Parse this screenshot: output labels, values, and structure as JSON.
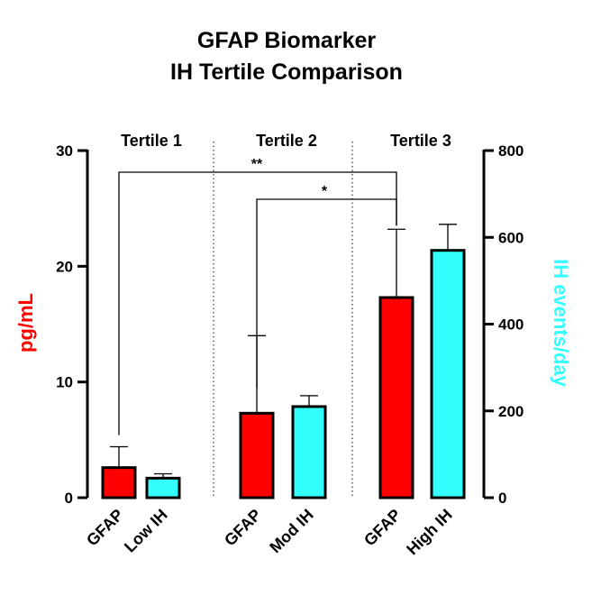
{
  "chart_data": {
    "type": "bar",
    "title": [
      "GFAP Biomarker",
      "IH Tertile Comparison"
    ],
    "groups": [
      "Tertile 1",
      "Tertile 2",
      "Tertile 3"
    ],
    "categories": [
      "GFAP",
      "Low IH",
      "GFAP",
      "Mod IH",
      "GFAP",
      "High IH"
    ],
    "ylabel_left": "pg/mL",
    "ylabel_right": "IH events/day",
    "ylim_left": [
      0,
      30
    ],
    "ylim_right": [
      0,
      800
    ],
    "yticks_left": [
      "0",
      "10",
      "20",
      "30"
    ],
    "yticks_right": [
      "0",
      "200",
      "400",
      "600",
      "800"
    ],
    "series": [
      {
        "axis": "left",
        "color": "#ff0000",
        "positions": [
          0,
          2,
          4
        ],
        "values": [
          2.6,
          7.3,
          17.3
        ],
        "error": [
          1.8,
          6.7,
          5.9
        ]
      },
      {
        "axis": "right",
        "color": "#33ffff",
        "positions": [
          1,
          3,
          5
        ],
        "values": [
          45,
          210,
          570
        ],
        "error": [
          10,
          25,
          60
        ]
      }
    ],
    "significance": [
      {
        "from": 0,
        "to": 4,
        "label": "**"
      },
      {
        "from": 2,
        "to": 4,
        "label": "*"
      }
    ],
    "grid": false,
    "legend": "none"
  }
}
